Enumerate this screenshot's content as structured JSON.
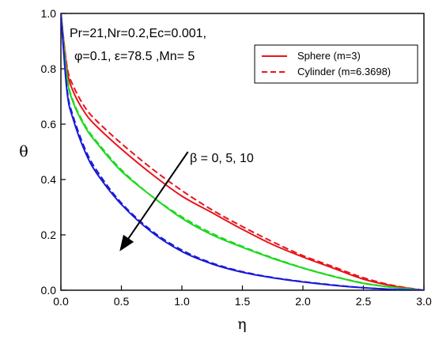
{
  "chart_data": {
    "type": "line",
    "xlabel": "η",
    "ylabel": "θ",
    "xlim": [
      0.0,
      3.0
    ],
    "ylim": [
      0.0,
      1.0
    ],
    "x_ticks": [
      "0.0",
      "0.5",
      "1.0",
      "1.5",
      "2.0",
      "2.5",
      "3.0"
    ],
    "y_ticks": [
      "0.0",
      "0.2",
      "0.4",
      "0.6",
      "0.8",
      "1.0"
    ],
    "grid": false,
    "legend_placement": "top-right",
    "legend": [
      {
        "label": "Sphere (m=3)",
        "color": "#e8141c",
        "dash": "solid"
      },
      {
        "label": "Cylinder (m=6.3698)",
        "color": "#e8141c",
        "dash": "dashed"
      }
    ],
    "annotations": {
      "params_line1": "Pr=21,Nr=0.2,Ec=0.001,",
      "params_line2": "φ=0.1, ε=78.5 ,Mn= 5",
      "beta_label": "β = 0, 5, 10",
      "arrow": {
        "from": [
          1.05,
          0.5
        ],
        "to": [
          0.5,
          0.15
        ]
      }
    },
    "x": [
      0,
      0.05,
      0.1,
      0.2,
      0.3,
      0.5,
      0.75,
      1.0,
      1.25,
      1.5,
      1.75,
      2.0,
      2.25,
      2.5,
      2.75,
      3.0
    ],
    "series": [
      {
        "beta": 0,
        "geometry": "sphere",
        "color": "#e8141c",
        "dash": "solid",
        "values": [
          1.0,
          0.8,
          0.72,
          0.64,
          0.59,
          0.51,
          0.42,
          0.34,
          0.28,
          0.22,
          0.165,
          0.12,
          0.08,
          0.04,
          0.015,
          0.0
        ]
      },
      {
        "beta": 0,
        "geometry": "cylinder",
        "color": "#e8141c",
        "dash": "dashed",
        "values": [
          1.0,
          0.81,
          0.74,
          0.66,
          0.61,
          0.53,
          0.44,
          0.36,
          0.29,
          0.23,
          0.175,
          0.125,
          0.085,
          0.045,
          0.017,
          0.0
        ]
      },
      {
        "beta": 5,
        "geometry": "sphere",
        "color": "#1ed81e",
        "dash": "solid",
        "values": [
          1.0,
          0.77,
          0.68,
          0.59,
          0.53,
          0.43,
          0.34,
          0.26,
          0.2,
          0.155,
          0.115,
          0.08,
          0.05,
          0.025,
          0.01,
          0.0
        ]
      },
      {
        "beta": 5,
        "geometry": "cylinder",
        "color": "#1ed81e",
        "dash": "dashed",
        "values": [
          1.0,
          0.775,
          0.685,
          0.595,
          0.535,
          0.435,
          0.34,
          0.265,
          0.205,
          0.158,
          0.117,
          0.081,
          0.051,
          0.026,
          0.01,
          0.0
        ]
      },
      {
        "beta": 10,
        "geometry": "sphere",
        "color": "#1a1ad8",
        "dash": "solid",
        "values": [
          1.0,
          0.72,
          0.62,
          0.5,
          0.42,
          0.31,
          0.21,
          0.14,
          0.095,
          0.065,
          0.045,
          0.03,
          0.018,
          0.009,
          0.003,
          0.0
        ]
      },
      {
        "beta": 10,
        "geometry": "cylinder",
        "color": "#1a1ad8",
        "dash": "dashed",
        "values": [
          1.0,
          0.73,
          0.63,
          0.51,
          0.43,
          0.315,
          0.215,
          0.145,
          0.098,
          0.067,
          0.046,
          0.031,
          0.019,
          0.009,
          0.003,
          0.0
        ]
      }
    ]
  }
}
